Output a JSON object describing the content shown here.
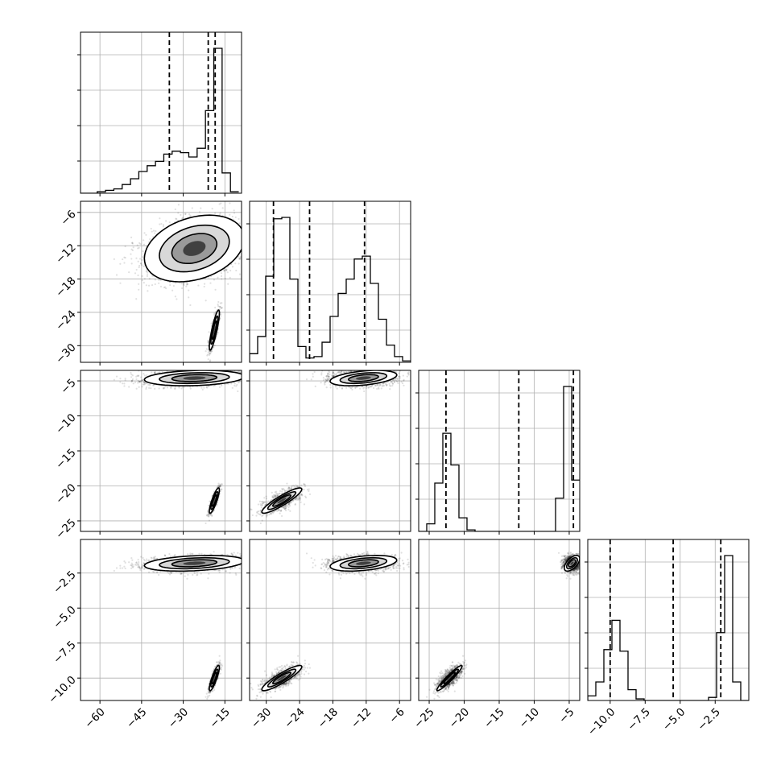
{
  "chart_data": {
    "type": "corner",
    "grid": true,
    "parameters": [
      {
        "range": [
          -67,
          -9
        ],
        "ticks": [
          -60,
          -45,
          -30,
          -15
        ],
        "tick_labels": [
          "−60",
          "−45",
          "−30",
          "−15"
        ],
        "quantiles": [
          -35.0,
          -21.0,
          -18.5
        ],
        "histogram": {
          "bins": [
            -67,
            -64,
            -61,
            -58,
            -55,
            -52,
            -49,
            -46,
            -43,
            -40,
            -37,
            -34,
            -31,
            -28,
            -25,
            -22,
            -19,
            -16,
            -13,
            -10
          ],
          "counts": [
            0.0,
            0.0,
            0.01,
            0.02,
            0.03,
            0.06,
            0.1,
            0.15,
            0.19,
            0.22,
            0.27,
            0.29,
            0.28,
            0.25,
            0.31,
            0.57,
            1.0,
            0.14,
            0.01
          ]
        }
      },
      {
        "range": [
          -33,
          -4
        ],
        "ticks": [
          -30,
          -24,
          -18,
          -12,
          -6
        ],
        "tick_labels": [
          "−30",
          "−24",
          "−18",
          "−12",
          "−6"
        ],
        "quantiles": [
          -28.7,
          -22.2,
          -12.3
        ],
        "histogram": {
          "bins": [
            -33.0,
            -31.55,
            -30.1,
            -28.65,
            -27.2,
            -25.75,
            -24.3,
            -22.85,
            -21.4,
            -19.95,
            -18.5,
            -17.05,
            -15.6,
            -14.15,
            -12.7,
            -11.25,
            -9.8,
            -8.35,
            -6.9,
            -5.45,
            -4.0
          ],
          "counts": [
            0.06,
            0.18,
            0.6,
            1.0,
            1.01,
            0.58,
            0.11,
            0.03,
            0.04,
            0.14,
            0.32,
            0.48,
            0.58,
            0.72,
            0.74,
            0.55,
            0.3,
            0.12,
            0.04,
            0.01
          ]
        }
      },
      {
        "range": [
          -26.5,
          -3.5
        ],
        "ticks": [
          -25,
          -20,
          -15,
          -10,
          -5
        ],
        "tick_labels": [
          "−25",
          "−20",
          "−15",
          "−10",
          "−5"
        ],
        "quantiles": [
          -22.6,
          -12.2,
          -4.4
        ],
        "histogram": {
          "bins": [
            -26.5,
            -25.35,
            -24.2,
            -23.05,
            -21.9,
            -20.75,
            -19.6,
            -18.45,
            -17.3,
            -16.15,
            -15.0,
            -13.85,
            -12.7,
            -11.55,
            -10.4,
            -9.25,
            -8.1,
            -6.95,
            -5.8,
            -4.65,
            -3.5
          ],
          "counts": [
            0.0,
            0.05,
            0.32,
            0.65,
            0.44,
            0.09,
            0.01,
            0.0,
            0.0,
            0.0,
            0.0,
            0.0,
            0.0,
            0.0,
            0.0,
            0.0,
            0.0,
            0.22,
            0.96,
            0.34
          ]
        }
      },
      {
        "range": [
          -11.6,
          -0.1
        ],
        "ticks": [
          -10.0,
          -7.5,
          -5.0,
          -2.5
        ],
        "tick_labels": [
          "−10.0",
          "−7.5",
          "−5.0",
          "−2.5"
        ],
        "quantiles": [
          -10.0,
          -5.5,
          -2.1
        ],
        "histogram": {
          "bins": [
            -11.6,
            -11.025,
            -10.45,
            -9.875,
            -9.3,
            -8.725,
            -8.15,
            -7.575,
            -7.0,
            -6.425,
            -5.85,
            -5.275,
            -4.7,
            -4.125,
            -3.55,
            -2.975,
            -2.4,
            -1.825,
            -1.25,
            -0.675,
            -0.1
          ],
          "counts": [
            0.03,
            0.12,
            0.33,
            0.52,
            0.32,
            0.07,
            0.01,
            0.0,
            0.0,
            0.0,
            0.0,
            0.0,
            0.0,
            0.0,
            0.0,
            0.02,
            0.44,
            0.94,
            0.12,
            0.0
          ]
        }
      }
    ],
    "modes": [
      {
        "center": [
          -26,
          -12.5,
          -4.6,
          -1.8
        ],
        "spread": [
          9.0,
          3.0,
          0.55,
          0.28
        ],
        "skew_x0": [
          -19,
          -2
        ],
        "corr": [
          [
            0,
            1,
            0.3
          ],
          [
            0,
            2,
            0.2
          ],
          [
            0,
            3,
            0.3
          ],
          [
            1,
            2,
            0.4
          ],
          [
            1,
            3,
            0.4
          ],
          [
            2,
            3,
            0.6
          ]
        ]
      },
      {
        "center": [
          -18.8,
          -27.2,
          -22.1,
          -10.0
        ],
        "spread": [
          0.9,
          1.8,
          0.9,
          0.45
        ],
        "corr": [
          [
            0,
            1,
            0.85
          ],
          [
            0,
            2,
            0.85
          ],
          [
            0,
            3,
            0.85
          ],
          [
            1,
            2,
            0.9
          ],
          [
            1,
            3,
            0.9
          ],
          [
            2,
            3,
            0.95
          ]
        ]
      }
    ]
  }
}
